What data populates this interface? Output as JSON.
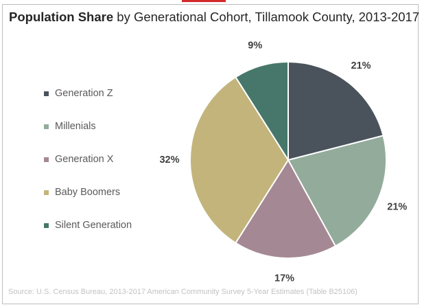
{
  "title": {
    "bold": "Population Share",
    "rest": " by Generational Cohort, Tillamook County, 2013-2017"
  },
  "source": "Source: U.S. Census Bureau, 2013-2017 American Community Survey 5-Year Estimates (Table B25106)",
  "chart_data": {
    "type": "pie",
    "title": "Population Share by Generational Cohort, Tillamook County, 2013-2017",
    "legend_position": "left",
    "start_angle_deg": 0,
    "direction": "clockwise",
    "slices": [
      {
        "name": "Generation Z",
        "value": 21,
        "label": "21%",
        "color": "#4a525c"
      },
      {
        "name": "Millenials",
        "value": 21,
        "label": "21%",
        "color": "#93ab9b"
      },
      {
        "name": "Generation X",
        "value": 17,
        "label": "17%",
        "color": "#a48893"
      },
      {
        "name": "Baby Boomers",
        "value": 32,
        "label": "32%",
        "color": "#c3b47b"
      },
      {
        "name": "Silent Generation",
        "value": 9,
        "label": "9%",
        "color": "#46776a"
      }
    ]
  }
}
